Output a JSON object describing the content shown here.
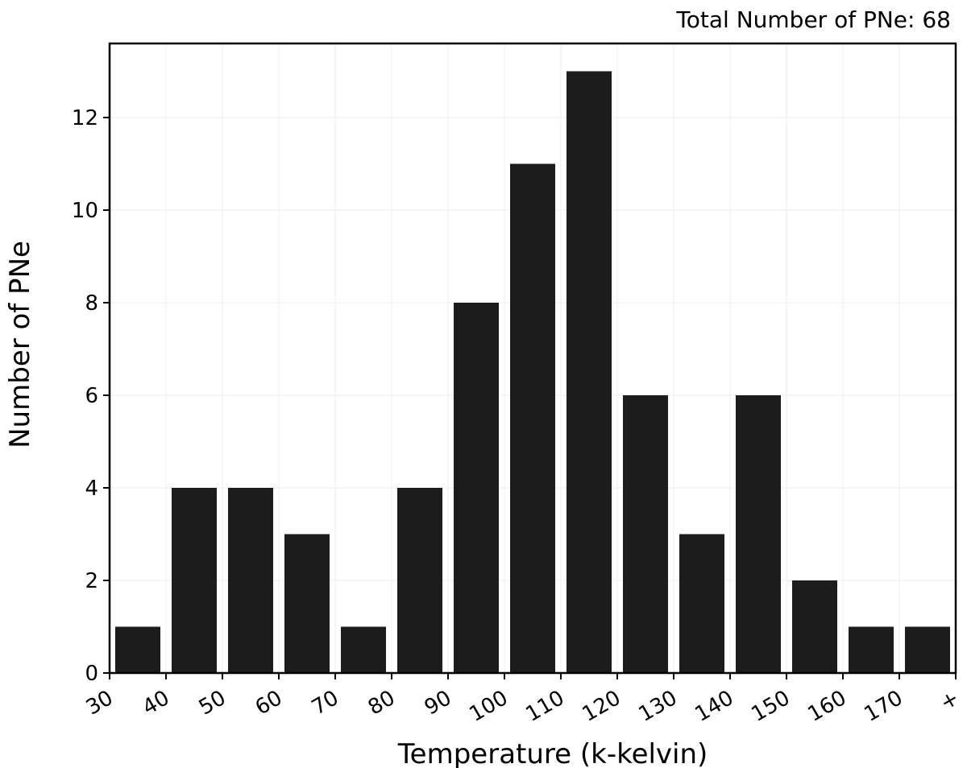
{
  "chart_data": {
    "type": "bar",
    "title": "",
    "annotation": "Total Number of PNe: 68",
    "xlabel": "Temperature (k-kelvin)",
    "ylabel": "Number of PNe",
    "x_tick_labels": [
      "30",
      "40",
      "50",
      "60",
      "70",
      "80",
      "90",
      "100",
      "110",
      "120",
      "130",
      "140",
      "150",
      "160",
      "170",
      "+"
    ],
    "bin_edges": [
      30,
      40,
      50,
      60,
      70,
      80,
      90,
      100,
      110,
      120,
      130,
      140,
      150,
      160,
      170,
      180
    ],
    "values": [
      1,
      4,
      4,
      3,
      1,
      4,
      8,
      11,
      13,
      6,
      3,
      6,
      2,
      1,
      1
    ],
    "ylim": [
      0,
      13.6
    ],
    "y_ticks": [
      0,
      2,
      4,
      6,
      8,
      10,
      12
    ],
    "grid": true,
    "bar_color": "#1c1c1c"
  }
}
